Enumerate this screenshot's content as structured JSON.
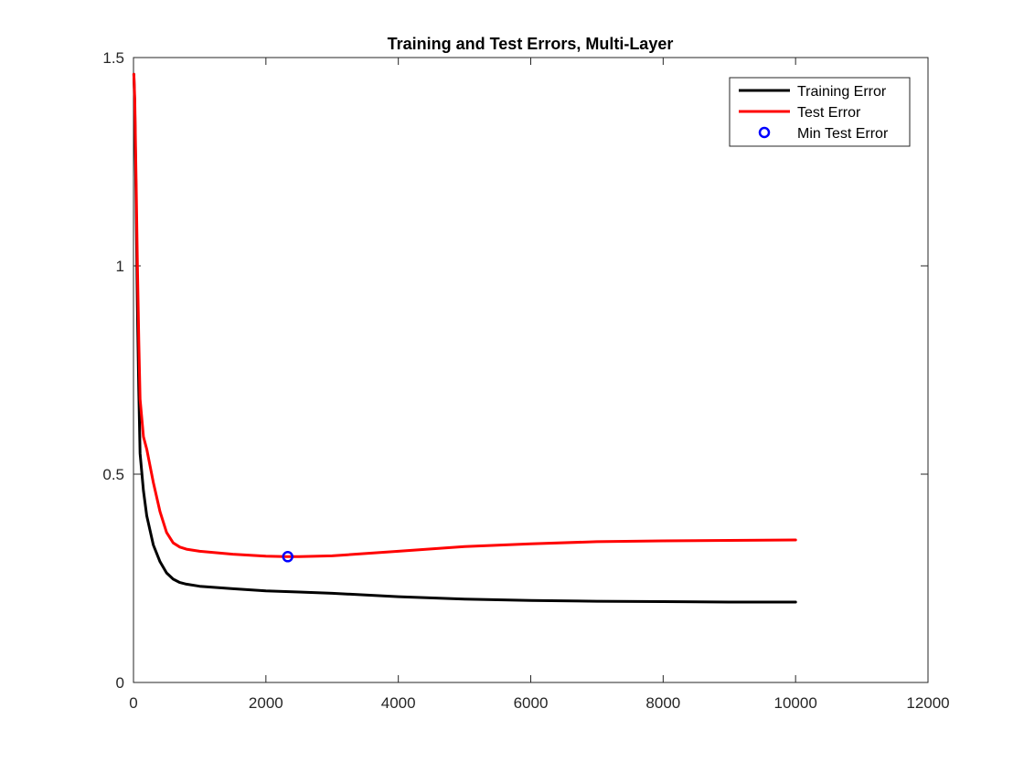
{
  "chart_data": {
    "type": "line",
    "title": "Training and Test Errors, Multi-Layer",
    "xlabel": "",
    "ylabel": "",
    "xlim": [
      0,
      12000
    ],
    "ylim": [
      0,
      1.5
    ],
    "x_ticks": [
      0,
      2000,
      4000,
      6000,
      8000,
      10000,
      12000
    ],
    "x_tick_labels": [
      "0",
      "2000",
      "4000",
      "6000",
      "8000",
      "10000",
      "12000"
    ],
    "y_ticks": [
      0,
      0.5,
      1,
      1.5
    ],
    "y_tick_labels": [
      "0",
      "0.5",
      "1",
      "1.5"
    ],
    "grid": false,
    "legend_position": "top-right",
    "series": [
      {
        "name": "Training Error",
        "color": "#000000",
        "style": "line",
        "x": [
          5,
          20,
          40,
          60,
          80,
          100,
          150,
          200,
          300,
          400,
          500,
          600,
          700,
          800,
          1000,
          1500,
          2000,
          2500,
          3000,
          4000,
          5000,
          6000,
          7000,
          8000,
          9000,
          10000
        ],
        "y": [
          1.46,
          1.38,
          1.15,
          0.9,
          0.7,
          0.55,
          0.46,
          0.4,
          0.33,
          0.29,
          0.263,
          0.248,
          0.24,
          0.236,
          0.231,
          0.225,
          0.22,
          0.217,
          0.214,
          0.206,
          0.2,
          0.197,
          0.195,
          0.194,
          0.193,
          0.193
        ]
      },
      {
        "name": "Test Error",
        "color": "#ff0000",
        "style": "line",
        "x": [
          5,
          20,
          40,
          60,
          80,
          100,
          150,
          200,
          300,
          400,
          500,
          600,
          700,
          800,
          1000,
          1500,
          2000,
          2300,
          2500,
          3000,
          4000,
          5000,
          6000,
          7000,
          8000,
          9000,
          10000
        ],
        "y": [
          1.46,
          1.4,
          1.2,
          1.0,
          0.82,
          0.68,
          0.59,
          0.56,
          0.48,
          0.41,
          0.36,
          0.335,
          0.325,
          0.32,
          0.315,
          0.308,
          0.303,
          0.302,
          0.302,
          0.304,
          0.315,
          0.326,
          0.333,
          0.338,
          0.34,
          0.341,
          0.342
        ]
      },
      {
        "name": "Min Test Error",
        "color": "#0000ff",
        "style": "marker-circle",
        "x": [
          2330
        ],
        "y": [
          0.302
        ]
      }
    ]
  }
}
